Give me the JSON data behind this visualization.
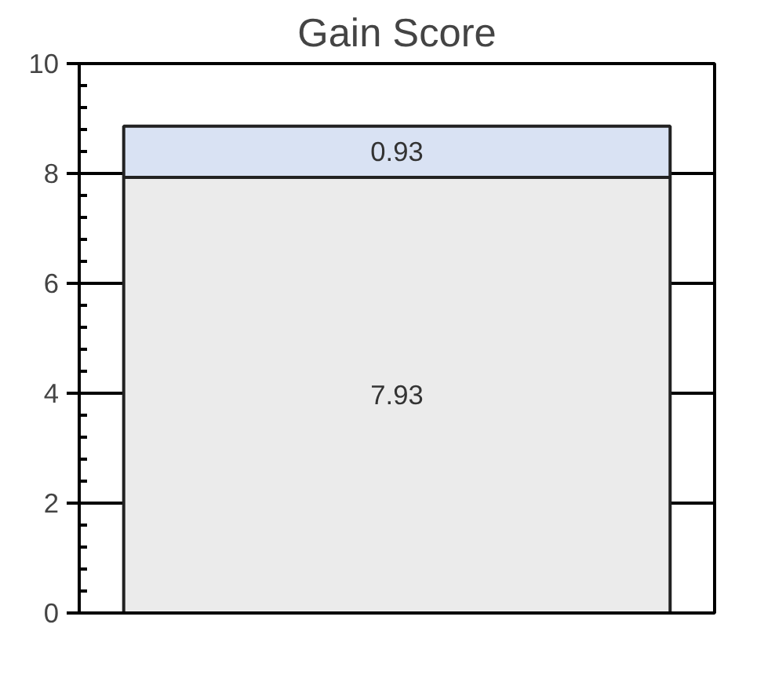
{
  "chart_data": {
    "type": "bar",
    "title": "Gain Score",
    "categories": [
      null
    ],
    "stacked": true,
    "series": [
      {
        "color": "#ebebeb",
        "values": [
          7.93
        ]
      },
      {
        "color": "#d9e2f3",
        "values": [
          0.93
        ]
      }
    ],
    "ylim": [
      0,
      10
    ],
    "yticks": [
      0,
      2,
      4,
      6,
      8,
      10
    ],
    "grid": "y",
    "data_labels": true,
    "tick_labels": "y"
  }
}
